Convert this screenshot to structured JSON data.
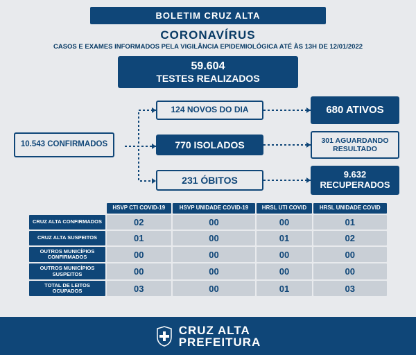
{
  "colors": {
    "primary": "#0f4678",
    "background": "#e8eaed",
    "cell_bg": "#c9cfd6",
    "white": "#ffffff"
  },
  "header": {
    "banner": "BOLETIM CRUZ ALTA",
    "title": "CORONAVÍRUS",
    "subtitle": "CASOS E EXAMES INFORMADOS PELA VIGILÂNCIA EPIDEMIOLÓGICA ATÉ ÀS 13H DE 12/01/2022"
  },
  "stats": {
    "tests_num": "59.604",
    "tests_label": "TESTES REALIZADOS",
    "confirmed": "10.543 CONFIRMADOS",
    "new_cases": "124 NOVOS DO DIA",
    "active": "680 ATIVOS",
    "isolated": "770 ISOLADOS",
    "waiting_num": "301 AGUARDANDO",
    "waiting_label": "RESULTADO",
    "deaths": "231 ÓBITOS",
    "recovered_num": "9.632",
    "recovered_label": "RECUPERADOS"
  },
  "table": {
    "col_headers": [
      "HSVP\nCTI COVID-19",
      "HSVP UNIDADE\nCOVID-19",
      "HRSL UTI COVID",
      "HRSL UNIDADE\nCOVID"
    ],
    "row_headers": [
      "CRUZ ALTA\nCONFIRMADOS",
      "CRUZ ALTA\nSUSPEITOS",
      "OUTROS MUNICÍPIOS\nCONFIRMADOS",
      "OUTROS MUNICÍPIOS\nSUSPEITOS",
      "TOTAL DE LEITOS\nOCUPADOS"
    ],
    "rows": [
      [
        "02",
        "00",
        "00",
        "01"
      ],
      [
        "01",
        "00",
        "01",
        "02"
      ],
      [
        "00",
        "00",
        "00",
        "00"
      ],
      [
        "00",
        "00",
        "00",
        "00"
      ],
      [
        "03",
        "00",
        "01",
        "03"
      ]
    ]
  },
  "footer": {
    "name": "CRUZ ALTA",
    "sub": "PREFEITURA"
  }
}
